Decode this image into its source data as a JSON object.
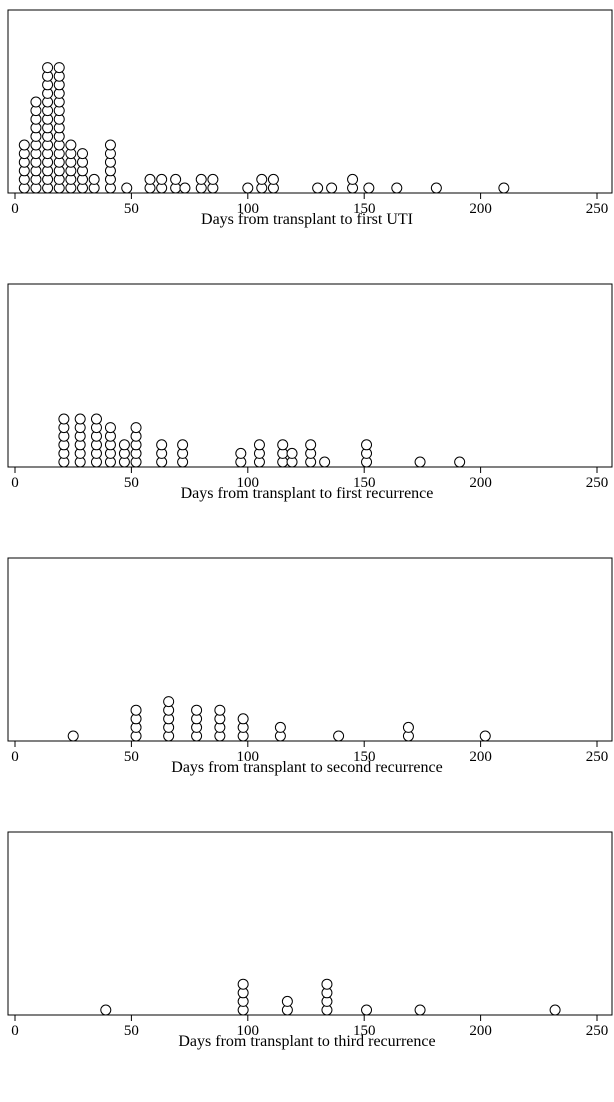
{
  "chart_data": [
    {
      "type": "dot",
      "xlabel": "Days from transplant to first UTI",
      "xlim": [
        0,
        250
      ],
      "xticks": [
        0,
        50,
        100,
        150,
        200,
        250
      ],
      "points": [
        {
          "x": 4,
          "n": 6
        },
        {
          "x": 9,
          "n": 11
        },
        {
          "x": 14,
          "n": 15
        },
        {
          "x": 19,
          "n": 15
        },
        {
          "x": 24,
          "n": 6
        },
        {
          "x": 29,
          "n": 5
        },
        {
          "x": 34,
          "n": 2
        },
        {
          "x": 41,
          "n": 6
        },
        {
          "x": 48,
          "n": 1
        },
        {
          "x": 58,
          "n": 2
        },
        {
          "x": 63,
          "n": 2
        },
        {
          "x": 69,
          "n": 2
        },
        {
          "x": 73,
          "n": 1
        },
        {
          "x": 80,
          "n": 2
        },
        {
          "x": 85,
          "n": 2
        },
        {
          "x": 100,
          "n": 1
        },
        {
          "x": 106,
          "n": 2
        },
        {
          "x": 111,
          "n": 2
        },
        {
          "x": 130,
          "n": 1
        },
        {
          "x": 136,
          "n": 1
        },
        {
          "x": 145,
          "n": 2
        },
        {
          "x": 152,
          "n": 1
        },
        {
          "x": 164,
          "n": 1
        },
        {
          "x": 181,
          "n": 1
        },
        {
          "x": 210,
          "n": 1
        }
      ]
    },
    {
      "type": "dot",
      "xlabel": "Days from transplant to first recurrence",
      "xlim": [
        0,
        250
      ],
      "xticks": [
        0,
        50,
        100,
        150,
        200,
        250
      ],
      "points": [
        {
          "x": 21,
          "n": 6
        },
        {
          "x": 28,
          "n": 6
        },
        {
          "x": 35,
          "n": 6
        },
        {
          "x": 41,
          "n": 5
        },
        {
          "x": 47,
          "n": 3
        },
        {
          "x": 52,
          "n": 5
        },
        {
          "x": 63,
          "n": 3
        },
        {
          "x": 72,
          "n": 3
        },
        {
          "x": 97,
          "n": 2
        },
        {
          "x": 105,
          "n": 3
        },
        {
          "x": 115,
          "n": 3
        },
        {
          "x": 119,
          "n": 2
        },
        {
          "x": 127,
          "n": 3
        },
        {
          "x": 133,
          "n": 1
        },
        {
          "x": 151,
          "n": 3
        },
        {
          "x": 174,
          "n": 1
        },
        {
          "x": 191,
          "n": 1
        }
      ]
    },
    {
      "type": "dot",
      "xlabel": "Days from transplant to second recurrence",
      "xlim": [
        0,
        250
      ],
      "xticks": [
        0,
        50,
        100,
        150,
        200,
        250
      ],
      "points": [
        {
          "x": 25,
          "n": 1
        },
        {
          "x": 52,
          "n": 4
        },
        {
          "x": 66,
          "n": 5
        },
        {
          "x": 78,
          "n": 4
        },
        {
          "x": 88,
          "n": 4
        },
        {
          "x": 98,
          "n": 3
        },
        {
          "x": 114,
          "n": 2
        },
        {
          "x": 139,
          "n": 1
        },
        {
          "x": 169,
          "n": 2
        },
        {
          "x": 202,
          "n": 1
        }
      ]
    },
    {
      "type": "dot",
      "xlabel": "Days from transplant to third recurrence",
      "xlim": [
        0,
        250
      ],
      "xticks": [
        0,
        50,
        100,
        150,
        200,
        250
      ],
      "points": [
        {
          "x": 39,
          "n": 1
        },
        {
          "x": 98,
          "n": 4
        },
        {
          "x": 117,
          "n": 2
        },
        {
          "x": 134,
          "n": 4
        },
        {
          "x": 151,
          "n": 1
        },
        {
          "x": 174,
          "n": 1
        },
        {
          "x": 232,
          "n": 1
        }
      ]
    }
  ]
}
